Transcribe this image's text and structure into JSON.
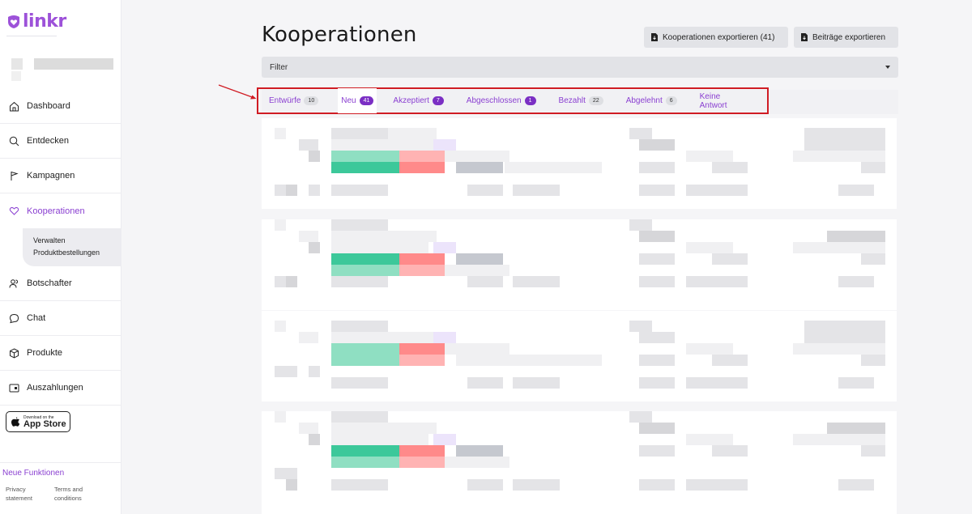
{
  "brand": {
    "name": "linkr",
    "color": "#9d52d9"
  },
  "sidebar": {
    "items": [
      {
        "label": "Dashboard",
        "icon": "home-icon"
      },
      {
        "label": "Entdecken",
        "icon": "search-icon"
      },
      {
        "label": "Kampagnen",
        "icon": "flag-icon"
      },
      {
        "label": "Kooperationen",
        "icon": "heart-icon",
        "active": true
      },
      {
        "label": "Botschafter",
        "icon": "users-icon"
      },
      {
        "label": "Chat",
        "icon": "chat-icon"
      },
      {
        "label": "Produkte",
        "icon": "box-icon"
      },
      {
        "label": "Auszahlungen",
        "icon": "wallet-icon"
      }
    ],
    "subitems": [
      "Verwalten",
      "Produktbestellungen"
    ],
    "appstore": {
      "small": "Download on the",
      "big": "App Store"
    },
    "new_features": "Neue Funktionen",
    "footer": {
      "privacy": "Privacy statement",
      "terms": "Terms and conditions"
    }
  },
  "page": {
    "title": "Kooperationen",
    "export_coop": "Kooperationen exportieren (41)",
    "export_posts": "Beiträge exportieren",
    "filter": "Filter"
  },
  "tabs": [
    {
      "label": "Entwürfe",
      "count": "10",
      "style": "gray"
    },
    {
      "label": "Neu",
      "count": "41",
      "style": "purple",
      "active": true
    },
    {
      "label": "Akzeptiert",
      "count": "7",
      "style": "purple"
    },
    {
      "label": "Abgeschlossen",
      "count": "1",
      "style": "purple"
    },
    {
      "label": "Bezahlt",
      "count": "22",
      "style": "gray"
    },
    {
      "label": "Abgelehnt",
      "count": "6",
      "style": "gray"
    },
    {
      "label": "Keine Antwort",
      "count": "",
      "style": "none"
    }
  ],
  "colors": {
    "accent": "#8a3fd1",
    "highlight_border": "#d01c24",
    "arrow": "#d01c24"
  }
}
